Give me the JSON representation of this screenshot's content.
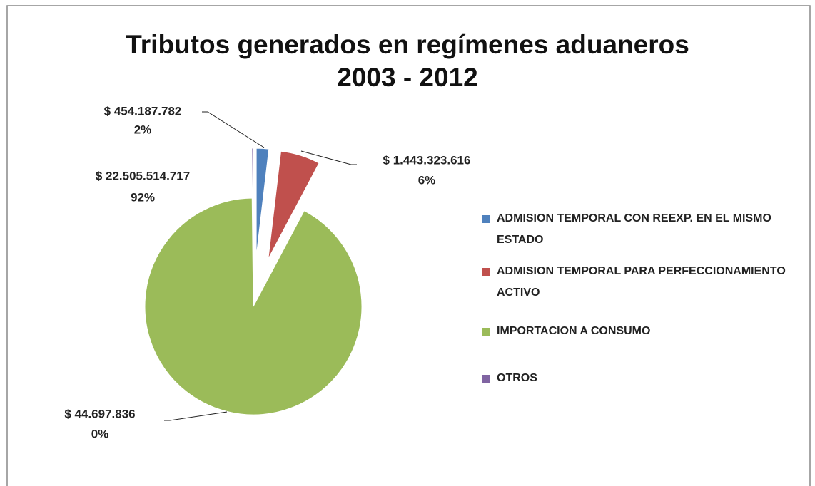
{
  "chart_data": {
    "type": "pie",
    "title": "Tributos generados en regímenes aduaneros\n2003 - 2012",
    "categories": [
      "ADMISION TEMPORAL  CON REEXP.  EN EL MISMO ESTADO",
      "ADMISION TEMPORAL  PARA PERFECCIONAMIENTO ACTIVO",
      "IMPORTACION A CONSUMO",
      "OTROS"
    ],
    "values": [
      454187782,
      1443323616,
      22505514717,
      44697836
    ],
    "value_labels": [
      "$ 454.187.782",
      "$ 1.443.323.616",
      "$ 22.505.514.717",
      "$ 44.697.836"
    ],
    "percent_labels": [
      "2%",
      "6%",
      "92%",
      "0%"
    ],
    "colors": [
      "#4f81bd",
      "#c0504d",
      "#9bbb59",
      "#8064a2"
    ],
    "legend": "right"
  }
}
